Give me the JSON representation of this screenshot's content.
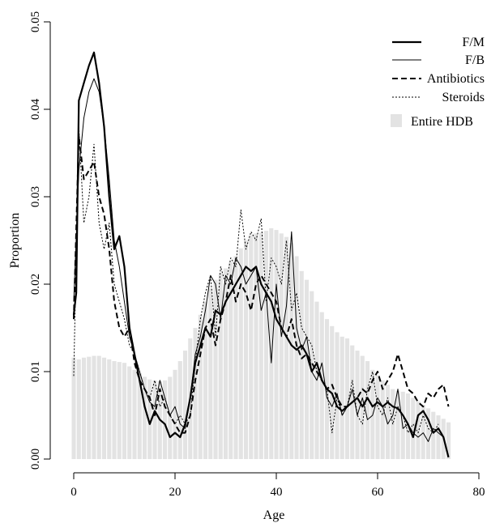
{
  "chart_data": {
    "type": "line",
    "title": "",
    "xlabel": "Age",
    "ylabel": "Proportion",
    "xlim": [
      0,
      85
    ],
    "ylim": [
      0,
      0.05
    ],
    "x_ticks": [
      "0",
      "20",
      "40",
      "60",
      "80"
    ],
    "y_ticks": [
      "0.00",
      "0.01",
      "0.02",
      "0.03",
      "0.04",
      "0.05"
    ],
    "legend_position": "top-right",
    "legend": [
      "F/M",
      "F/B",
      "Antibiotics",
      "Steroids",
      "Entire HDB"
    ],
    "bars": {
      "name": "Entire HDB",
      "color": "#e3e3e3",
      "x": [
        0,
        1,
        2,
        3,
        4,
        5,
        6,
        7,
        8,
        9,
        10,
        11,
        12,
        13,
        14,
        15,
        16,
        17,
        18,
        19,
        20,
        21,
        22,
        23,
        24,
        25,
        26,
        27,
        28,
        29,
        30,
        31,
        32,
        33,
        34,
        35,
        36,
        37,
        38,
        39,
        40,
        41,
        42,
        43,
        44,
        45,
        46,
        47,
        48,
        49,
        50,
        51,
        52,
        53,
        54,
        55,
        56,
        57,
        58,
        59,
        60,
        61,
        62,
        63,
        64,
        65,
        66,
        67,
        68,
        69,
        70,
        71,
        72,
        73,
        74
      ],
      "values": [
        0.0116,
        0.0114,
        0.0116,
        0.0117,
        0.0118,
        0.0118,
        0.0116,
        0.0114,
        0.0112,
        0.0111,
        0.011,
        0.0106,
        0.0102,
        0.0098,
        0.0094,
        0.0091,
        0.009,
        0.0089,
        0.009,
        0.0094,
        0.0102,
        0.0112,
        0.0124,
        0.0138,
        0.015,
        0.0165,
        0.018,
        0.0195,
        0.0205,
        0.0213,
        0.0218,
        0.0225,
        0.0232,
        0.0241,
        0.025,
        0.0256,
        0.0258,
        0.0259,
        0.0261,
        0.0264,
        0.0262,
        0.0258,
        0.0254,
        0.0247,
        0.0232,
        0.0215,
        0.0205,
        0.0192,
        0.018,
        0.0168,
        0.016,
        0.0152,
        0.0145,
        0.014,
        0.0138,
        0.013,
        0.0124,
        0.0118,
        0.0112,
        0.0102,
        0.0096,
        0.009,
        0.0085,
        0.008,
        0.0078,
        0.0077,
        0.0075,
        0.007,
        0.0066,
        0.0062,
        0.0058,
        0.0054,
        0.005,
        0.0046,
        0.0042
      ]
    },
    "series": [
      {
        "name": "F/M",
        "style": "thick",
        "color": "#000000",
        "x": [
          0,
          0.5,
          1,
          2,
          3,
          4,
          5,
          6,
          7,
          8,
          9,
          10,
          11,
          12,
          13,
          14,
          15,
          16,
          17,
          18,
          19,
          20,
          21,
          22,
          23,
          24,
          25,
          26,
          27,
          28,
          29,
          30,
          31,
          32,
          33,
          34,
          35,
          36,
          37,
          38,
          39,
          40,
          41,
          42,
          43,
          44,
          45,
          46,
          47,
          48,
          49,
          50,
          51,
          52,
          53,
          54,
          55,
          56,
          57,
          58,
          59,
          60,
          61,
          62,
          63,
          64,
          65,
          66,
          67,
          68,
          69,
          70,
          71,
          72,
          73,
          74
        ],
        "values": [
          0.0165,
          0.019,
          0.041,
          0.043,
          0.045,
          0.0465,
          0.043,
          0.038,
          0.03,
          0.024,
          0.0255,
          0.022,
          0.015,
          0.012,
          0.009,
          0.006,
          0.004,
          0.0055,
          0.0045,
          0.004,
          0.0025,
          0.003,
          0.0025,
          0.004,
          0.007,
          0.011,
          0.013,
          0.015,
          0.014,
          0.017,
          0.0165,
          0.018,
          0.019,
          0.02,
          0.021,
          0.022,
          0.0215,
          0.022,
          0.02,
          0.019,
          0.018,
          0.016,
          0.015,
          0.014,
          0.013,
          0.0125,
          0.013,
          0.012,
          0.01,
          0.011,
          0.009,
          0.008,
          0.0075,
          0.006,
          0.0055,
          0.006,
          0.0065,
          0.007,
          0.006,
          0.007,
          0.006,
          0.0065,
          0.006,
          0.0065,
          0.006,
          0.0058,
          0.005,
          0.004,
          0.0025,
          0.005,
          0.0055,
          0.0045,
          0.003,
          0.0035,
          0.0025,
          0.0002
        ]
      },
      {
        "name": "F/B",
        "style": "thin",
        "color": "#000000",
        "x": [
          0,
          1,
          2,
          3,
          4,
          5,
          6,
          7,
          8,
          9,
          10,
          11,
          12,
          13,
          14,
          15,
          16,
          17,
          18,
          19,
          20,
          21,
          22,
          23,
          24,
          25,
          26,
          27,
          28,
          29,
          30,
          31,
          32,
          33,
          34,
          35,
          36,
          37,
          38,
          39,
          40,
          41,
          42,
          43,
          44,
          45,
          46,
          47,
          48,
          49,
          50,
          51,
          52,
          53,
          54,
          55,
          56,
          57,
          58,
          59,
          60,
          61,
          62,
          63,
          64,
          65,
          66,
          67,
          68,
          69,
          70,
          71,
          72,
          73,
          74
        ],
        "values": [
          0.018,
          0.033,
          0.039,
          0.042,
          0.0435,
          0.042,
          0.038,
          0.032,
          0.025,
          0.022,
          0.018,
          0.014,
          0.012,
          0.01,
          0.008,
          0.0065,
          0.006,
          0.009,
          0.007,
          0.005,
          0.006,
          0.004,
          0.0035,
          0.007,
          0.012,
          0.014,
          0.017,
          0.021,
          0.02,
          0.016,
          0.021,
          0.02,
          0.023,
          0.022,
          0.02,
          0.021,
          0.022,
          0.017,
          0.019,
          0.011,
          0.02,
          0.014,
          0.0175,
          0.026,
          0.015,
          0.0125,
          0.014,
          0.01,
          0.009,
          0.011,
          0.007,
          0.006,
          0.0075,
          0.005,
          0.006,
          0.008,
          0.005,
          0.007,
          0.0045,
          0.005,
          0.007,
          0.006,
          0.004,
          0.005,
          0.008,
          0.0035,
          0.004,
          0.003,
          0.0025,
          0.003,
          0.002,
          0.0035,
          0.003,
          0.0025,
          0.0002
        ]
      },
      {
        "name": "Antibiotics",
        "style": "dashed",
        "color": "#000000",
        "x": [
          0,
          1,
          2,
          3,
          4,
          5,
          6,
          7,
          8,
          9,
          10,
          11,
          12,
          13,
          14,
          15,
          16,
          17,
          18,
          19,
          20,
          21,
          22,
          23,
          24,
          25,
          26,
          27,
          28,
          29,
          30,
          31,
          32,
          33,
          34,
          35,
          36,
          37,
          38,
          39,
          40,
          41,
          42,
          43,
          44,
          45,
          46,
          47,
          48,
          49,
          50,
          51,
          52,
          53,
          54,
          55,
          56,
          57,
          58,
          59,
          60,
          61,
          62,
          63,
          64,
          65,
          66,
          67,
          68,
          69,
          70,
          71,
          72,
          73,
          74
        ],
        "values": [
          0.016,
          0.037,
          0.032,
          0.033,
          0.034,
          0.03,
          0.028,
          0.024,
          0.018,
          0.015,
          0.014,
          0.015,
          0.011,
          0.009,
          0.008,
          0.007,
          0.005,
          0.008,
          0.006,
          0.005,
          0.004,
          0.003,
          0.003,
          0.005,
          0.009,
          0.012,
          0.015,
          0.016,
          0.013,
          0.016,
          0.018,
          0.021,
          0.018,
          0.02,
          0.019,
          0.017,
          0.02,
          0.021,
          0.02,
          0.019,
          0.018,
          0.015,
          0.014,
          0.016,
          0.013,
          0.0115,
          0.012,
          0.011,
          0.01,
          0.009,
          0.008,
          0.0085,
          0.007,
          0.006,
          0.006,
          0.0065,
          0.007,
          0.008,
          0.0075,
          0.009,
          0.01,
          0.008,
          0.009,
          0.01,
          0.012,
          0.01,
          0.008,
          0.0075,
          0.0065,
          0.006,
          0.0075,
          0.007,
          0.008,
          0.0085,
          0.006
        ]
      },
      {
        "name": "Steroids",
        "style": "dotted",
        "color": "#000000",
        "x": [
          0,
          1,
          2,
          3,
          4,
          5,
          6,
          7,
          8,
          9,
          10,
          11,
          12,
          13,
          14,
          15,
          16,
          17,
          18,
          19,
          20,
          21,
          22,
          23,
          24,
          25,
          26,
          27,
          28,
          29,
          30,
          31,
          32,
          33,
          34,
          35,
          36,
          37,
          38,
          39,
          40,
          41,
          42,
          43,
          44,
          45,
          46,
          47,
          48,
          49,
          50,
          51,
          52,
          53,
          54,
          55,
          56,
          57,
          58,
          59,
          60,
          61,
          62,
          63,
          64,
          65,
          66,
          67,
          68,
          69,
          70,
          71,
          72
        ],
        "values": [
          0.0095,
          0.038,
          0.027,
          0.03,
          0.036,
          0.027,
          0.024,
          0.027,
          0.02,
          0.018,
          0.016,
          0.013,
          0.012,
          0.01,
          0.008,
          0.007,
          0.009,
          0.006,
          0.007,
          0.005,
          0.004,
          0.005,
          0.004,
          0.005,
          0.011,
          0.016,
          0.019,
          0.021,
          0.014,
          0.022,
          0.02,
          0.023,
          0.022,
          0.0285,
          0.024,
          0.026,
          0.025,
          0.0275,
          0.018,
          0.023,
          0.022,
          0.02,
          0.025,
          0.017,
          0.019,
          0.015,
          0.014,
          0.013,
          0.01,
          0.009,
          0.008,
          0.003,
          0.007,
          0.005,
          0.006,
          0.009,
          0.005,
          0.004,
          0.008,
          0.01,
          0.006,
          0.005,
          0.007,
          0.004,
          0.006,
          0.005,
          0.003,
          0.004,
          0.003,
          0.005,
          0.0035,
          0.003,
          0.004
        ]
      }
    ]
  }
}
